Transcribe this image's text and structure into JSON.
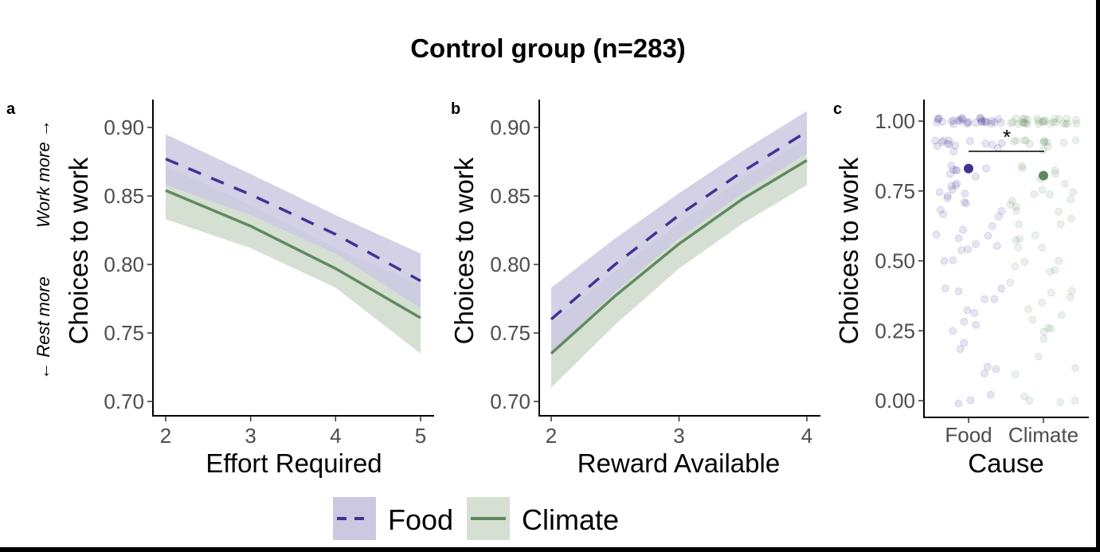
{
  "title": "Control group (n=283)",
  "colors": {
    "food_line": "#3f3391",
    "food_fill": "#cdc8e2",
    "climate_line": "#5f8a5f",
    "climate_fill": "#d5e0d3",
    "overlap": "#b5bcc4"
  },
  "legend": {
    "position": "bottom",
    "items": [
      {
        "label": "Food",
        "style": "dashed"
      },
      {
        "label": "Climate",
        "style": "solid"
      }
    ]
  },
  "chart_data": [
    {
      "panel": "a",
      "type": "line",
      "xlabel": "Effort Required",
      "ylabel": "Choices to work",
      "ylabel_arrows": {
        "up": "Work more →",
        "down": "← Rest more"
      },
      "xlim": [
        2,
        5
      ],
      "ylim": [
        0.7,
        0.9
      ],
      "xticks": [
        "2",
        "3",
        "4",
        "5"
      ],
      "yticks": [
        "0.70",
        "0.75",
        "0.80",
        "0.85",
        "0.90"
      ],
      "grid": false,
      "x": [
        2,
        3,
        4,
        5
      ],
      "series": [
        {
          "name": "Food",
          "values": [
            0.877,
            0.851,
            0.822,
            0.788
          ],
          "upper": [
            0.895,
            0.866,
            0.836,
            0.808
          ],
          "lower": [
            0.858,
            0.836,
            0.808,
            0.768
          ]
        },
        {
          "name": "Climate",
          "values": [
            0.854,
            0.828,
            0.797,
            0.761
          ],
          "upper": [
            0.872,
            0.843,
            0.812,
            0.785
          ],
          "lower": [
            0.833,
            0.812,
            0.783,
            0.735
          ]
        }
      ]
    },
    {
      "panel": "b",
      "type": "line",
      "xlabel": "Reward Available",
      "ylabel": "Choices to work",
      "xlim": [
        2,
        4
      ],
      "ylim": [
        0.7,
        0.9
      ],
      "xticks": [
        "2",
        "3",
        "4"
      ],
      "yticks": [
        "0.70",
        "0.75",
        "0.80",
        "0.85",
        "0.90"
      ],
      "grid": false,
      "x": [
        2,
        2.5,
        3,
        3.5,
        4
      ],
      "series": [
        {
          "name": "Food",
          "values": [
            0.76,
            0.8,
            0.836,
            0.868,
            0.897
          ],
          "upper": [
            0.783,
            0.819,
            0.852,
            0.883,
            0.912
          ],
          "lower": [
            0.736,
            0.78,
            0.819,
            0.852,
            0.881
          ]
        },
        {
          "name": "Climate",
          "values": [
            0.735,
            0.777,
            0.815,
            0.848,
            0.876
          ],
          "upper": [
            0.757,
            0.795,
            0.83,
            0.863,
            0.892
          ],
          "lower": [
            0.71,
            0.756,
            0.797,
            0.83,
            0.858
          ]
        }
      ]
    },
    {
      "panel": "c",
      "type": "scatter",
      "xlabel": "Cause",
      "ylabel": "Choices to work",
      "categories": [
        "Food",
        "Climate"
      ],
      "ylim": [
        0,
        1
      ],
      "yticks": [
        "0.00",
        "0.25",
        "0.50",
        "0.75",
        "1.00"
      ],
      "grid": false,
      "means": [
        0.83,
        0.805
      ],
      "significance": "*",
      "points": {
        "Food": [
          1,
          1,
          1,
          1,
          1,
          1,
          1,
          1,
          1,
          1,
          1,
          1,
          1,
          1,
          1,
          1,
          1,
          1,
          1,
          1,
          1,
          1,
          1,
          1,
          1,
          1,
          1,
          1,
          1,
          1,
          0.92,
          0.92,
          0.92,
          0.92,
          0.92,
          0.92,
          0.92,
          0.92,
          0.92,
          0.92,
          0.92,
          0.92,
          0.9,
          0.9,
          0.85,
          0.83,
          0.83,
          0.83,
          0.82,
          0.82,
          0.8,
          0.78,
          0.77,
          0.76,
          0.75,
          0.75,
          0.74,
          0.73,
          0.73,
          0.71,
          0.71,
          0.69,
          0.67,
          0.67,
          0.66,
          0.63,
          0.62,
          0.6,
          0.59,
          0.58,
          0.57,
          0.55,
          0.55,
          0.54,
          0.5,
          0.5,
          0.41,
          0.4,
          0.39,
          0.37,
          0.36,
          0.33,
          0.31,
          0.29,
          0.28,
          0.25,
          0.2,
          0.18,
          0.11,
          0.1,
          0.11,
          0.01,
          0,
          0.01
        ],
        "Climate": [
          1,
          1,
          1,
          1,
          1,
          1,
          1,
          1,
          1,
          1,
          1,
          1,
          1,
          1,
          1,
          1,
          1,
          1,
          1,
          1,
          1,
          1,
          1,
          1,
          1,
          1,
          1,
          1,
          1,
          1,
          0.92,
          0.92,
          0.92,
          0.92,
          0.92,
          0.92,
          0.92,
          0.92,
          0.92,
          0.92,
          0.92,
          0.92,
          0.9,
          0.85,
          0.84,
          0.82,
          0.82,
          0.8,
          0.78,
          0.76,
          0.75,
          0.75,
          0.74,
          0.72,
          0.71,
          0.7,
          0.69,
          0.68,
          0.67,
          0.65,
          0.63,
          0.62,
          0.6,
          0.59,
          0.58,
          0.55,
          0.54,
          0.5,
          0.5,
          0.49,
          0.46,
          0.45,
          0.42,
          0.4,
          0.39,
          0.37,
          0.35,
          0.33,
          0.3,
          0.28,
          0.27,
          0.26,
          0.25,
          0.22,
          0.16,
          0.11,
          0.09,
          0.01,
          0,
          0,
          0
        ]
      }
    }
  ]
}
